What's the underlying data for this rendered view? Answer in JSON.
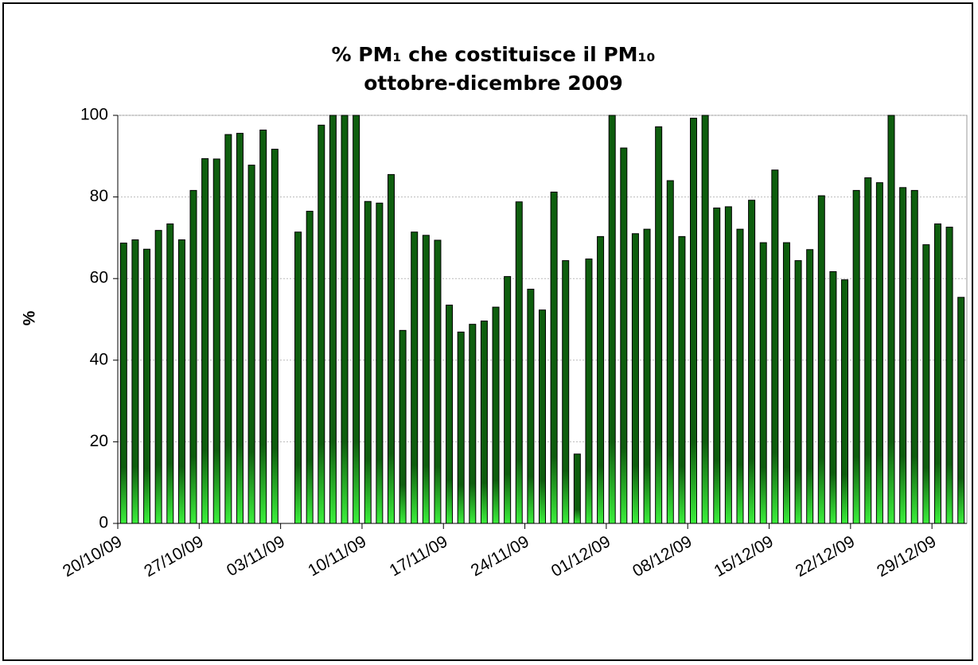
{
  "chart_data": {
    "type": "bar",
    "title": [
      "% PM₁ che costituisce il PM₁₀",
      "ottobre-dicembre 2009"
    ],
    "ylabel": "%",
    "categories": [
      "20/10/09",
      null,
      null,
      null,
      null,
      null,
      null,
      "27/10/09",
      null,
      null,
      null,
      null,
      null,
      null,
      "03/11/09",
      null,
      null,
      null,
      null,
      null,
      null,
      "10/11/09",
      null,
      null,
      null,
      null,
      null,
      null,
      "17/11/09",
      null,
      null,
      null,
      null,
      null,
      null,
      "24/11/09",
      null,
      null,
      null,
      null,
      null,
      null,
      "01/12/09",
      null,
      null,
      null,
      null,
      null,
      null,
      "08/12/09",
      null,
      null,
      null,
      null,
      null,
      null,
      "15/12/09",
      null,
      null,
      null,
      null,
      null,
      null,
      "22/12/09",
      null,
      null,
      null,
      null,
      null,
      null,
      "29/12/09",
      null,
      null
    ],
    "values": [
      68.7,
      69.5,
      67.2,
      71.8,
      73.4,
      69.5,
      81.6,
      89.4,
      89.3,
      95.3,
      95.6,
      87.8,
      96.4,
      91.7,
      null,
      71.4,
      76.5,
      97.6,
      100,
      100,
      100,
      78.9,
      78.5,
      85.5,
      47.3,
      71.4,
      70.6,
      69.4,
      53.5,
      46.9,
      48.8,
      49.6,
      53.0,
      60.5,
      78.8,
      57.4,
      52.3,
      81.2,
      64.4,
      17.0,
      64.8,
      70.3,
      100,
      92.0,
      71.0,
      72.1,
      97.2,
      84.0,
      70.3,
      99.3,
      100,
      77.3,
      77.6,
      72.1,
      79.2,
      68.8,
      86.6,
      68.8,
      64.4,
      67.1,
      80.3,
      61.7,
      59.7,
      81.6,
      84.7,
      83.5,
      100,
      82.3,
      81.6,
      68.3,
      73.4,
      72.6,
      55.4
    ],
    "color": "#0e5e0e",
    "highlight_color": "#3cf03c",
    "ylim": [
      0,
      100
    ],
    "yticks": [
      0,
      20,
      40,
      60,
      80,
      100
    ],
    "grid": true
  }
}
